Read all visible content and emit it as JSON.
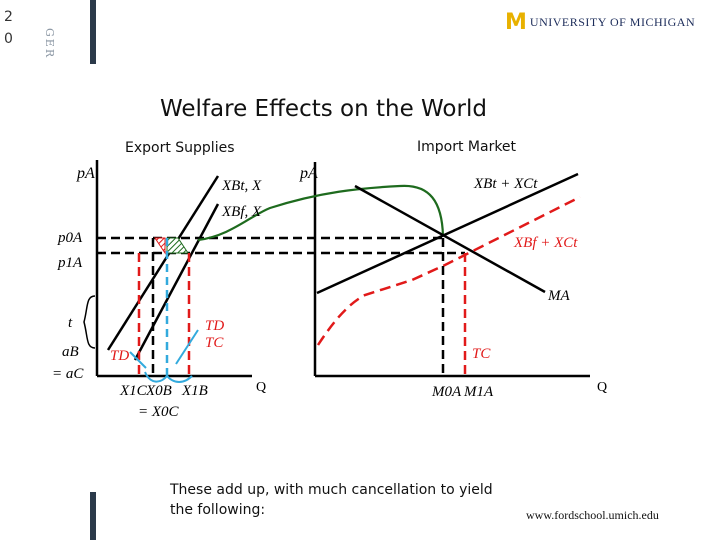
{
  "slide_number": "2\n0",
  "header": {
    "ger_label": "GER",
    "logo_mark": "M",
    "logo_text": "UNIVERSITY OF MICHIGAN"
  },
  "title": "Welfare Effects on the World",
  "panels": {
    "export_label": "Export Supplies",
    "import_label": "Import Market"
  },
  "diagram": {
    "left_axis_y": "pA",
    "right_axis_y": "pA",
    "left_axis_x": "Q",
    "right_axis_x": "Q",
    "curve_xbt_x": "XBt, X",
    "curve_xbf_x": "XBf, X",
    "curve_import_supply": "XBt + XCt",
    "curve_red_supply": "XBf + XCt",
    "curve_demand": "MA",
    "price_p0": "p0A",
    "price_p1": "p1A",
    "tariff_t": "t",
    "price_ab": "aB",
    "price_ac": "= aC",
    "label_td_left": "TD",
    "label_td_mid": "TD",
    "label_tc_mid": "TC",
    "label_tc_right": "TC",
    "qty_x1c": "X1C",
    "qty_x0b": "X0B",
    "qty_x1b": "X1B",
    "qty_x0c": "= X0C",
    "qty_m0": "M0A",
    "qty_m1": "M1A"
  },
  "colors": {
    "black": "#000000",
    "red": "#e11a1a",
    "green": "#1e6b1e",
    "blue": "#33aadd",
    "logo_gold": "#e8b100",
    "logo_navy": "#1c2c5a"
  },
  "caption": "These add up, with much cancellation to yield the following:",
  "footer_url": "www.fordschool.umich.edu"
}
